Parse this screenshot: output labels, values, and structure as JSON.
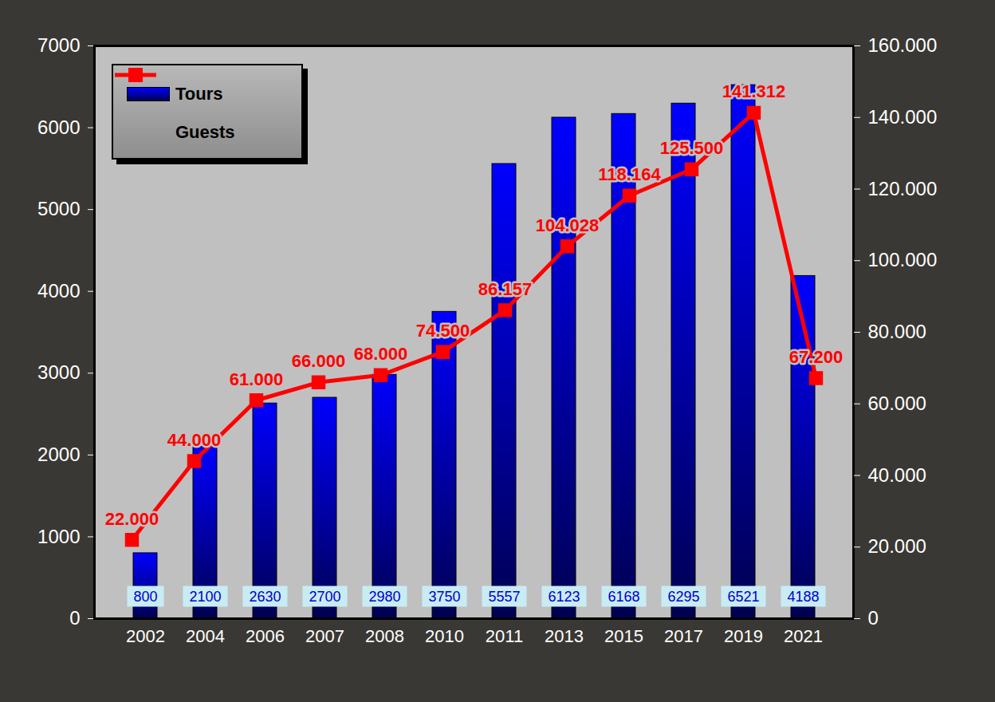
{
  "chart_data": {
    "type": "bar",
    "categories": [
      "2002",
      "2004",
      "2006",
      "2007",
      "2008",
      "2010",
      "2011",
      "2013",
      "2015",
      "2017",
      "2019",
      "2021"
    ],
    "series": [
      {
        "name": "Tours",
        "type": "bar",
        "color": "#0000ff",
        "values": [
          800,
          2100,
          2630,
          2700,
          2980,
          3750,
          5557,
          6123,
          6168,
          6295,
          6521,
          4188
        ]
      },
      {
        "name": "Guests",
        "type": "line",
        "axis": "y2",
        "color": "#ff0000",
        "marker": "square",
        "values": [
          22000,
          44000,
          61000,
          66000,
          68000,
          74500,
          86157,
          104028,
          118164,
          125500,
          141312,
          67200
        ],
        "value_labels": [
          "22.000",
          "44.000",
          "61.000",
          "66.000",
          "68.000",
          "74.500",
          "86.157",
          "104.028",
          "118.164",
          "125.500",
          "141.312",
          "67.200"
        ]
      }
    ],
    "ylim": [
      0,
      7000
    ],
    "yticks": [
      0,
      1000,
      2000,
      3000,
      4000,
      5000,
      6000,
      7000
    ],
    "y2lim": [
      0,
      160000
    ],
    "y2ticks": [
      0,
      {
        "value": 20000,
        "label": "20.000"
      },
      {
        "value": 40000,
        "label": "40.000"
      },
      {
        "value": 60000,
        "label": "60.000"
      },
      {
        "value": 80000,
        "label": "80.000"
      },
      {
        "value": 100000,
        "label": "100.000"
      },
      {
        "value": 120000,
        "label": "120.000"
      },
      {
        "value": 140000,
        "label": "140.000"
      },
      {
        "value": 160000,
        "label": "160.000"
      }
    ],
    "legend": "top-left",
    "data_labels": true,
    "grid": false
  }
}
